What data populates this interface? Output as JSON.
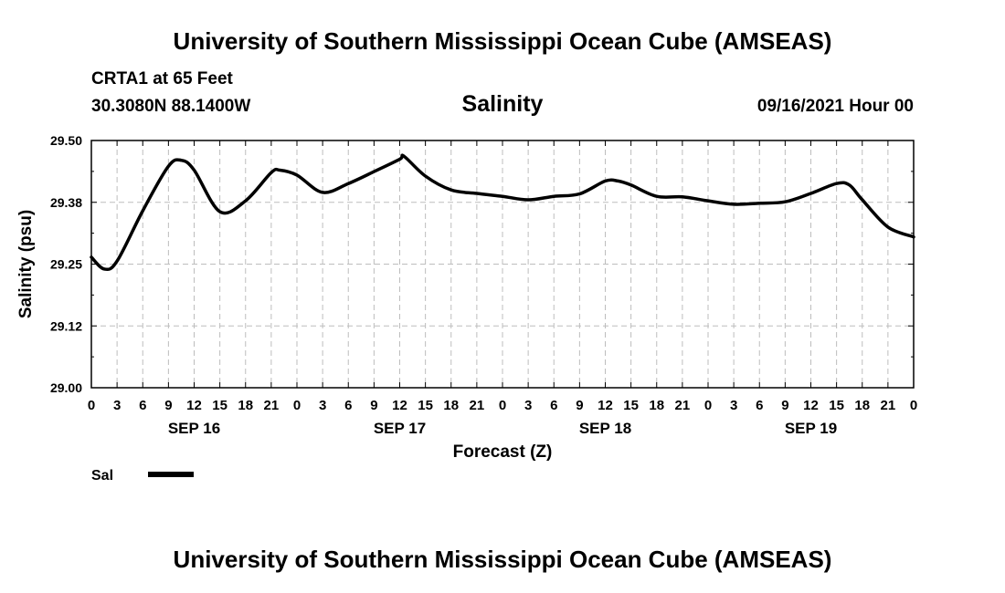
{
  "header": {
    "title": "University of Southern Mississippi Ocean Cube (AMSEAS)",
    "station": "CRTA1 at 65 Feet",
    "coordinates": "30.3080N  88.1400W",
    "parameter": "Salinity",
    "datetime": "09/16/2021 Hour 00"
  },
  "footer": {
    "title": "University of Southern Mississippi Ocean Cube (AMSEAS)"
  },
  "chart_data": {
    "type": "line",
    "title": "Salinity",
    "xlabel": "Forecast (Z)",
    "ylabel": "Salinity (psu)",
    "ylim": [
      29.0,
      29.5
    ],
    "yticks": [
      "29.00",
      "29.12",
      "29.25",
      "29.38",
      "29.50"
    ],
    "xlim": [
      0,
      96
    ],
    "xtick_labels": [
      "0",
      "3",
      "6",
      "9",
      "12",
      "15",
      "18",
      "21",
      "0",
      "3",
      "6",
      "9",
      "12",
      "15",
      "18",
      "21",
      "0",
      "3",
      "6",
      "9",
      "12",
      "15",
      "18",
      "21",
      "0",
      "3",
      "6",
      "9",
      "12",
      "15",
      "18",
      "21",
      "0"
    ],
    "date_labels": [
      {
        "label": "SEP 16",
        "hour": 12
      },
      {
        "label": "SEP 17",
        "hour": 36
      },
      {
        "label": "SEP 18",
        "hour": 60
      },
      {
        "label": "SEP 19",
        "hour": 84
      }
    ],
    "grid": true,
    "legend": [
      {
        "name": "Sal",
        "color": "#000000"
      }
    ],
    "series": [
      {
        "name": "Sal",
        "x": [
          0,
          1.5,
          3,
          6,
          9,
          10.5,
          12,
          15,
          18,
          21,
          22,
          24,
          27,
          30,
          33,
          36,
          36.5,
          39,
          42,
          45,
          48,
          51,
          54,
          57,
          60,
          61.5,
          63,
          66,
          69,
          72,
          75,
          78,
          81,
          84,
          87,
          88.5,
          90,
          93,
          96
        ],
        "values": [
          29.264,
          29.24,
          29.256,
          29.358,
          29.448,
          29.46,
          29.44,
          29.356,
          29.378,
          29.435,
          29.44,
          29.43,
          29.395,
          29.413,
          29.437,
          29.462,
          29.468,
          29.428,
          29.4,
          29.393,
          29.387,
          29.38,
          29.387,
          29.392,
          29.418,
          29.418,
          29.41,
          29.387,
          29.386,
          29.378,
          29.371,
          29.373,
          29.376,
          29.393,
          29.413,
          29.41,
          29.38,
          29.325,
          29.305
        ]
      }
    ]
  }
}
